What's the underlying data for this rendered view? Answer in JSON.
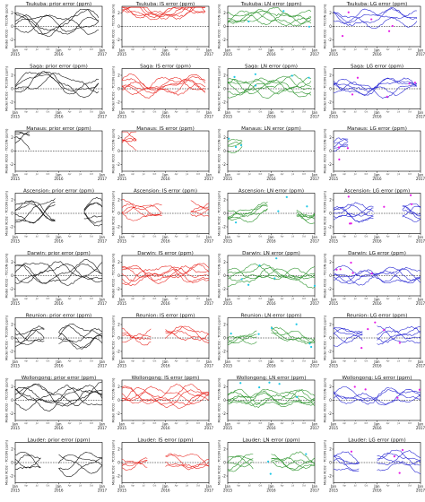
{
  "chart_data": {
    "type": "line",
    "layout": "8 rows (stations) x 4 columns (prior, IS, LN, LG)",
    "row_labels": [
      "Tsukuba",
      "Saga",
      "Manaus",
      "Ascension",
      "Darwin",
      "Reunion",
      "Wollongong",
      "Lauder"
    ],
    "column_suffixes": [
      "prior error (ppm)",
      "IS error (ppm)",
      "LN error (ppm)",
      "LG error (ppm)"
    ],
    "panel_titles": [
      [
        "Tsukuba: prior error (ppm)",
        "Tsukuba: IS error (ppm)",
        "Tsukuba: LN error (ppm)",
        "Tsukuba: LG error (ppm)"
      ],
      [
        "Saga: prior error (ppm)",
        "Saga: IS error (ppm)",
        "Saga: LN error (ppm)",
        "Saga: LG error (ppm)"
      ],
      [
        "Manaus: prior error (ppm)",
        "Manaus: IS error (ppm)",
        "Manaus: LN error (ppm)",
        "Manaus: LG error (ppm)"
      ],
      [
        "Ascension: prior error (ppm)",
        "Ascension: IS error (ppm)",
        "Ascension: LN error (ppm)",
        "Ascension: LG error (ppm)"
      ],
      [
        "Darwin: prior error (ppm)",
        "Darwin: IS error (ppm)",
        "Darwin: LN error (ppm)",
        "Darwin: LG error (ppm)"
      ],
      [
        "Reunion: prior error (ppm)",
        "Reunion: IS error (ppm)",
        "Reunion: LN error (ppm)",
        "Reunion: LG error (ppm)"
      ],
      [
        "Wollongong: prior error (ppm)",
        "Wollongong: IS error (ppm)",
        "Wollongong: LN error (ppm)",
        "Wollongong: LG error (ppm)"
      ],
      [
        "Lauder: prior error (ppm)",
        "Lauder: IS error (ppm)",
        "Lauder: LN error (ppm)",
        "Lauder: LG error (ppm)"
      ]
    ],
    "ylabel": "Model XCO2 - TCCON (ppm)",
    "ylim": [
      -3,
      3
    ],
    "yticks": [
      "-2",
      "0",
      "2"
    ],
    "xlim": [
      "2015-01",
      "2017-01"
    ],
    "major_ticks": [
      {
        "line1": "Jan",
        "line2": "2015",
        "t": 0
      },
      {
        "line1": "Jan",
        "line2": "2016",
        "t": 12
      },
      {
        "line1": "Jan",
        "line2": "2017",
        "t": 24
      }
    ],
    "minor_ticks": [
      {
        "label": "Apr",
        "t": 3
      },
      {
        "label": "Jul",
        "t": 6
      },
      {
        "label": "Oct",
        "t": 9
      },
      {
        "label": "Apr",
        "t": 15
      },
      {
        "label": "Jul",
        "t": 18
      },
      {
        "label": "Oct",
        "t": 21
      }
    ],
    "zero_line": "dashed",
    "column_colors": [
      "#000000",
      "#e8201a",
      "#1e8c1e",
      "#1a1ad0"
    ],
    "marker_colors": {
      "LN": "#1ec8e6",
      "LG": "#e61ee6"
    },
    "stations": {
      "Tsukuba": {
        "months": [
          0,
          23
        ],
        "offset": [
          0.5,
          2.0
        ]
      },
      "Saga": {
        "months": [
          0,
          23
        ],
        "offset": [
          1.0,
          0.4
        ]
      },
      "Manaus": {
        "months": [
          0,
          4
        ],
        "offset": [
          1.2,
          1.5
        ]
      },
      "Ascension": {
        "months": [
          0,
          24
        ],
        "gap": [
          11,
          19
        ],
        "offset": [
          0.3,
          0.2
        ]
      },
      "Darwin": {
        "months": [
          0,
          24
        ],
        "offset": [
          0.4,
          0.1
        ]
      },
      "Reunion": {
        "months": [
          0,
          24
        ],
        "gap": [
          8,
          12
        ],
        "offset": [
          0.2,
          0.3
        ]
      },
      "Wollongong": {
        "months": [
          0,
          24
        ],
        "offset": [
          0.6,
          0.4
        ]
      },
      "Lauder": {
        "months": [
          0,
          24
        ],
        "gap": [
          7,
          12
        ],
        "offset": [
          0.1,
          0.1
        ]
      }
    }
  }
}
